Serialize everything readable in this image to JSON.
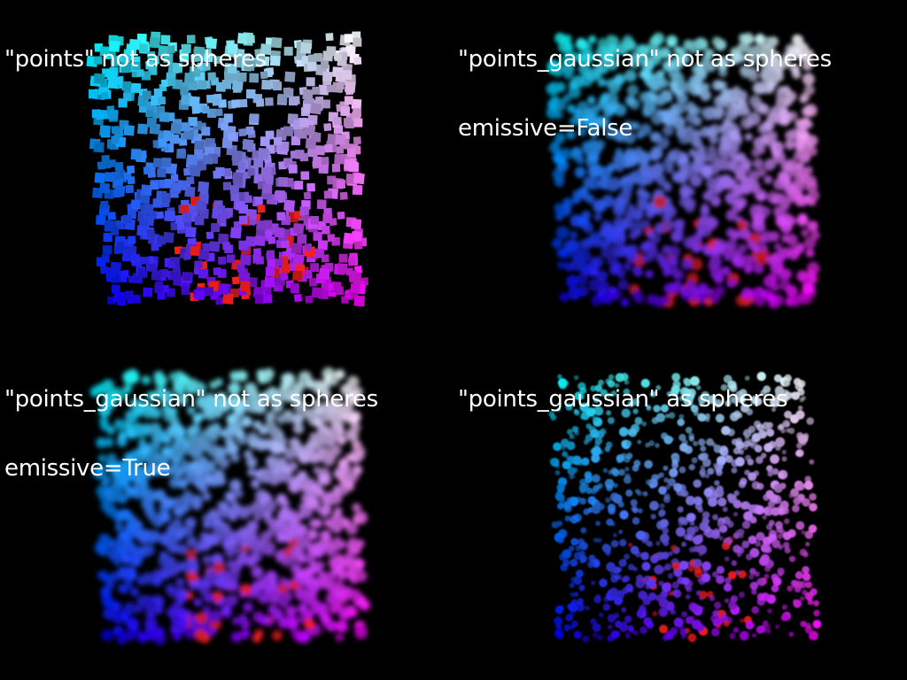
{
  "panels": [
    {
      "id": "tl",
      "style": "squares",
      "emissive": false,
      "caption_lines": [
        "\"points\" not as spheres"
      ]
    },
    {
      "id": "tr",
      "style": "gaussian",
      "emissive": false,
      "caption_lines": [
        "\"points_gaussian\" not as spheres",
        "emissive=False"
      ]
    },
    {
      "id": "bl",
      "style": "gaussian",
      "emissive": true,
      "caption_lines": [
        "\"points_gaussian\" not as spheres",
        "emissive=True"
      ]
    },
    {
      "id": "br",
      "style": "spheres",
      "emissive": false,
      "caption_lines": [
        "\"points_gaussian\" as spheres"
      ]
    }
  ],
  "colors": {
    "background": "#000000",
    "text": "#ffffff",
    "corner_top_left": "#00ffff",
    "corner_top_right": "#ffffff",
    "corner_bottom_left": "#0000ff",
    "corner_bottom_right": "#ff00ff",
    "center_accent": "#ff2020"
  },
  "point_count": 900
}
